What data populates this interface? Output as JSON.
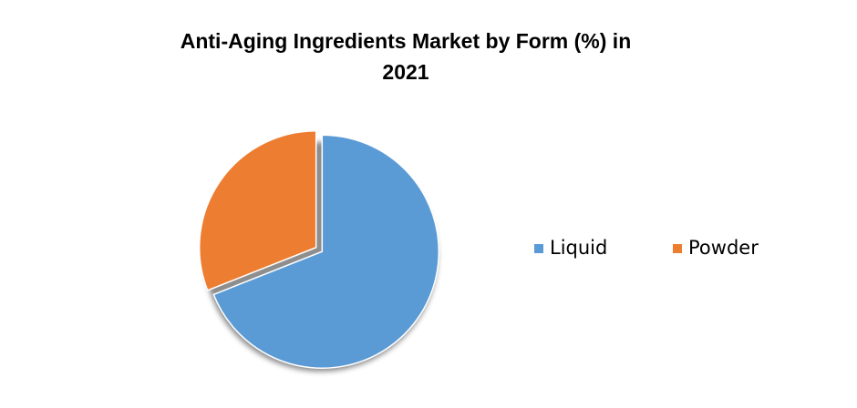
{
  "chart_data": {
    "type": "pie",
    "title": "Anti-Aging Ingredients Market by Form (%) in 2021",
    "categories": [
      "Liquid",
      "Powder"
    ],
    "values": [
      69,
      31
    ],
    "colors": [
      "#5b9bd5",
      "#ed7d31"
    ],
    "legend": "right"
  }
}
